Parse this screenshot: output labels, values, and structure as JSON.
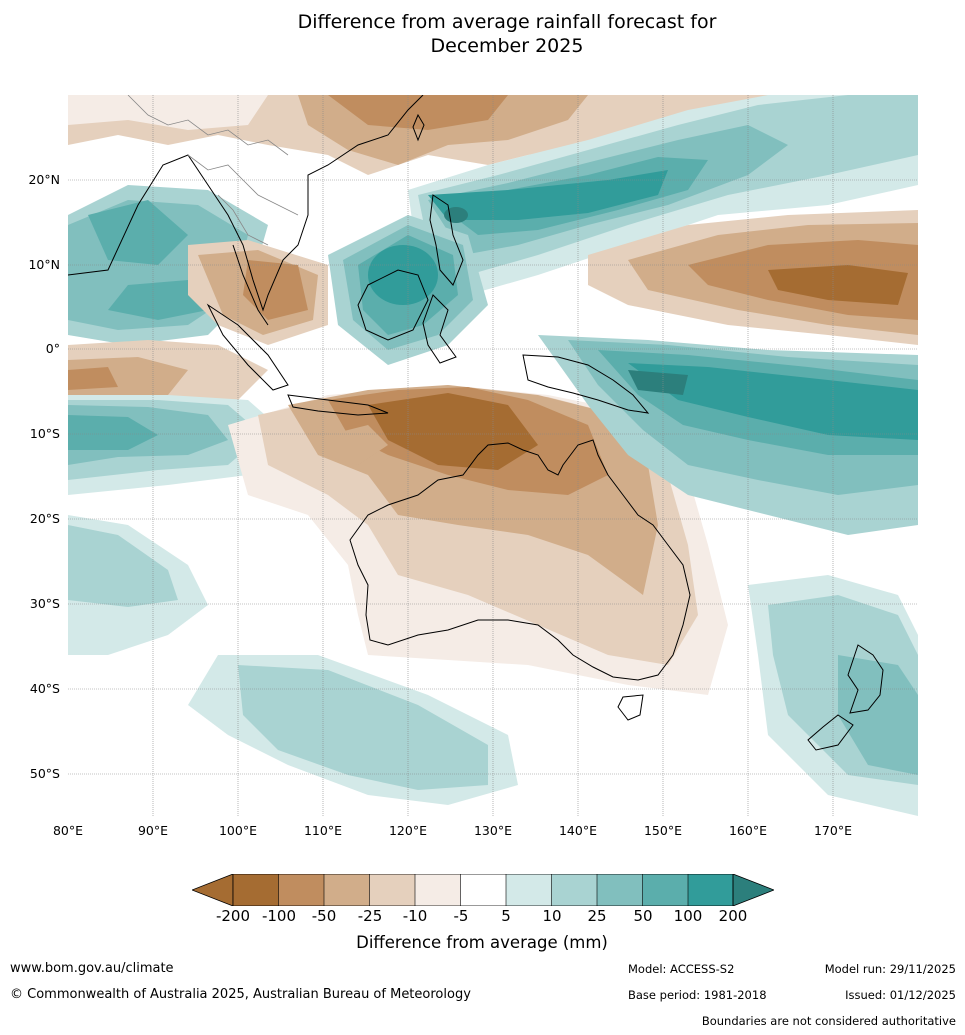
{
  "title_line1": "Difference from average rainfall forecast for",
  "title_line2": "December 2025",
  "latitude_labels": [
    "20°N",
    "10°N",
    "0°",
    "10°S",
    "20°S",
    "30°S",
    "40°S",
    "50°S"
  ],
  "longitude_labels": [
    "80°E",
    "90°E",
    "100°E",
    "110°E",
    "120°E",
    "130°E",
    "140°E",
    "150°E",
    "160°E",
    "170°E"
  ],
  "colorbar": {
    "title": "Difference from average (mm)",
    "tick_labels": [
      "-200",
      "-100",
      "-50",
      "-25",
      "-10",
      "-5",
      "5",
      "10",
      "25",
      "50",
      "100",
      "200"
    ],
    "colors": [
      "#a56c32",
      "#a56c32",
      "#c08d5f",
      "#d1ad8a",
      "#e5d0bd",
      "#f5ece6",
      "#ffffff",
      "#d3e9e8",
      "#a9d3d2",
      "#81bfbe",
      "#5baeac",
      "#319c9a",
      "#2c7f7c"
    ]
  },
  "footer": {
    "website": "www.bom.gov.au/climate",
    "copyright": "© Commonwealth of Australia 2025, Australian Bureau of Meteorology",
    "model": "Model: ACCESS-S2",
    "base_period": "Base period: 1981-2018",
    "model_run": "Model run: 29/11/2025",
    "issued": "Issued: 01/12/2025",
    "boundaries_note": "Boundaries are not considered authoritative"
  }
}
